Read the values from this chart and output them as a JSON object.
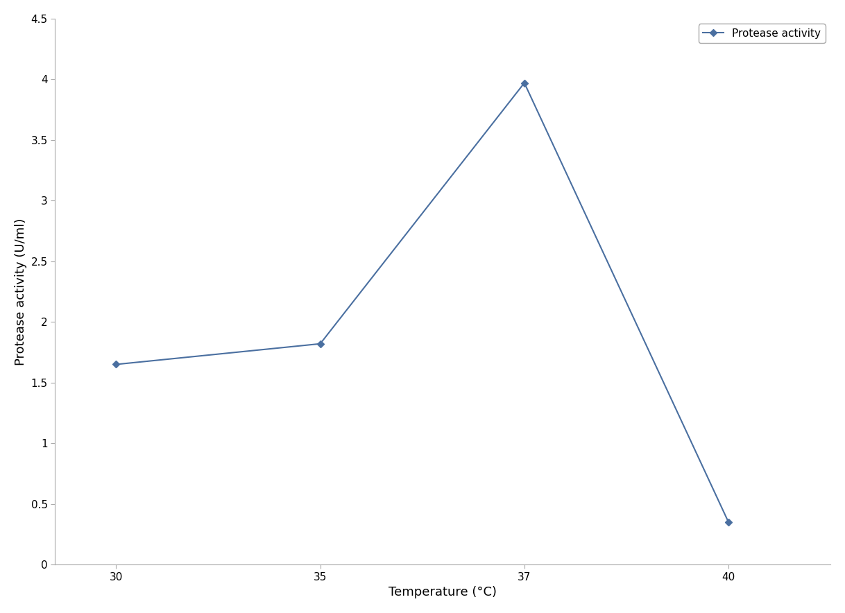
{
  "x_labels": [
    "30",
    "35",
    "37",
    "40"
  ],
  "x_positions": [
    0,
    1,
    2,
    3
  ],
  "y": [
    1.65,
    1.82,
    3.97,
    0.35
  ],
  "line_color": "#4a6fa0",
  "marker": "D",
  "marker_size": 5,
  "marker_color": "#4a6fa0",
  "xlabel": "Temperature (°C)",
  "ylabel": "Protease activity (U/ml)",
  "legend_label": "Protease activity",
  "xlim": [
    -0.3,
    3.5
  ],
  "ylim": [
    0,
    4.5
  ],
  "yticks": [
    0,
    0.5,
    1.0,
    1.5,
    2.0,
    2.5,
    3.0,
    3.5,
    4.0,
    4.5
  ],
  "xlabel_fontsize": 13,
  "ylabel_fontsize": 13,
  "tick_fontsize": 11,
  "legend_fontsize": 11,
  "background_color": "#ffffff",
  "line_width": 1.5,
  "spine_color": "#aaaaaa"
}
